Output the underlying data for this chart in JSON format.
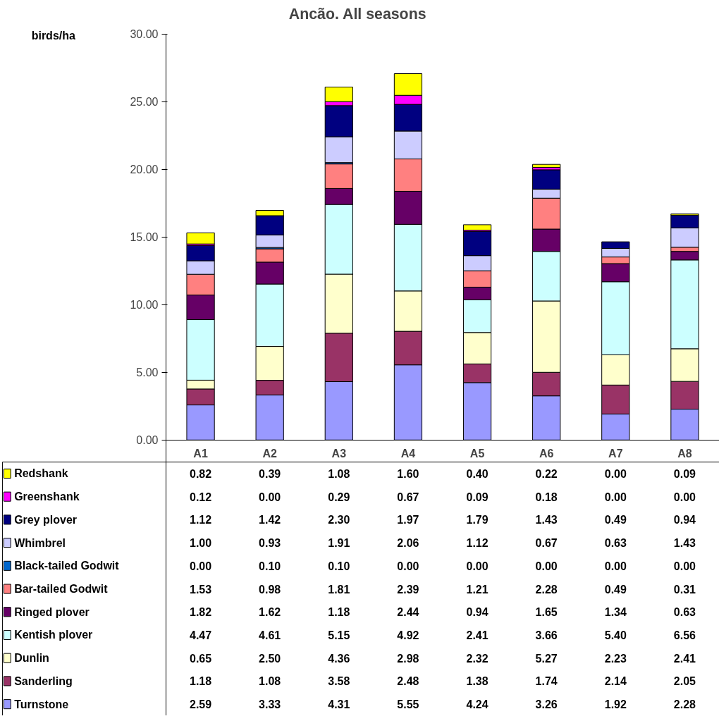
{
  "chart_data": {
    "type": "bar",
    "title": "Ancão.  All seasons",
    "ylabel": "birds/ha",
    "stacked": true,
    "legend": "bottom",
    "grid": false,
    "categories": [
      "A1",
      "A2",
      "A3",
      "A4",
      "A5",
      "A6",
      "A7",
      "A8"
    ],
    "ylim": [
      0,
      30
    ],
    "yticks": [
      {
        "value": 0,
        "label": "0.00"
      },
      {
        "value": 5,
        "label": "5.00"
      },
      {
        "value": 10,
        "label": "10.00"
      },
      {
        "value": 15,
        "label": "15.00"
      },
      {
        "value": 20,
        "label": "20.00"
      },
      {
        "value": 25,
        "label": "25.00"
      },
      {
        "value": 30,
        "label": "30.00"
      }
    ],
    "series": [
      {
        "name": "Turnstone",
        "color": "#9999ff",
        "values": [
          2.59,
          3.33,
          4.31,
          5.55,
          4.24,
          3.26,
          1.92,
          2.28
        ],
        "value_labels": [
          "2.59",
          "3.33",
          "4.31",
          "5.55",
          "4.24",
          "3.26",
          "1.92",
          "2.28"
        ]
      },
      {
        "name": "Sanderling",
        "color": "#993366",
        "values": [
          1.18,
          1.08,
          3.58,
          2.48,
          1.38,
          1.74,
          2.14,
          2.05
        ],
        "value_labels": [
          "1.18",
          "1.08",
          "3.58",
          "2.48",
          "1.38",
          "1.74",
          "2.14",
          "2.05"
        ]
      },
      {
        "name": "Dunlin",
        "color": "#ffffcc",
        "values": [
          0.65,
          2.5,
          4.36,
          2.98,
          2.32,
          5.27,
          2.23,
          2.41
        ],
        "value_labels": [
          "0.65",
          "2.50",
          "4.36",
          "2.98",
          "2.32",
          "5.27",
          "2.23",
          "2.41"
        ]
      },
      {
        "name": "Kentish plover",
        "color": "#ccffff",
        "values": [
          4.47,
          4.61,
          5.15,
          4.92,
          2.41,
          3.66,
          5.4,
          6.56
        ],
        "value_labels": [
          "4.47",
          "4.61",
          "5.15",
          "4.92",
          "2.41",
          "3.66",
          "5.40",
          "6.56"
        ]
      },
      {
        "name": "Ringed plover",
        "color": "#660066",
        "values": [
          1.82,
          1.62,
          1.18,
          2.44,
          0.94,
          1.65,
          1.34,
          0.63
        ],
        "value_labels": [
          "1.82",
          "1.62",
          "1.18",
          "2.44",
          "0.94",
          "1.65",
          "1.34",
          "0.63"
        ]
      },
      {
        "name": "Bar-tailed Godwit",
        "color": "#ff8080",
        "values": [
          1.53,
          0.98,
          1.81,
          2.39,
          1.21,
          2.28,
          0.49,
          0.31
        ],
        "value_labels": [
          "1.53",
          "0.98",
          "1.81",
          "2.39",
          "1.21",
          "2.28",
          "0.49",
          "0.31"
        ]
      },
      {
        "name": "Black-tailed Godwit",
        "color": "#0066cc",
        "values": [
          0,
          0.1,
          0.1,
          0,
          0,
          0,
          0,
          0
        ],
        "value_labels": [
          "0.00",
          "0.10",
          "0.10",
          "0.00",
          "0.00",
          "0.00",
          "0.00",
          "0.00"
        ]
      },
      {
        "name": "Whimbrel",
        "color": "#ccccff",
        "values": [
          1.0,
          0.93,
          1.91,
          2.06,
          1.12,
          0.67,
          0.63,
          1.43
        ],
        "value_labels": [
          "1.00",
          "0.93",
          "1.91",
          "2.06",
          "1.12",
          "0.67",
          "0.63",
          "1.43"
        ]
      },
      {
        "name": "Grey plover",
        "color": "#000080",
        "values": [
          1.12,
          1.42,
          2.3,
          1.97,
          1.79,
          1.43,
          0.49,
          0.94
        ],
        "value_labels": [
          "1.12",
          "1.42",
          "2.30",
          "1.97",
          "1.79",
          "1.43",
          "0.49",
          "0.94"
        ]
      },
      {
        "name": "Greenshank",
        "color": "#ff00ff",
        "values": [
          0.12,
          0,
          0.29,
          0.67,
          0.09,
          0.18,
          0,
          0
        ],
        "value_labels": [
          "0.12",
          "0.00",
          "0.29",
          "0.67",
          "0.09",
          "0.18",
          "0.00",
          "0.00"
        ]
      },
      {
        "name": "Redshank",
        "color": "#ffff00",
        "values": [
          0.82,
          0.39,
          1.08,
          1.6,
          0.4,
          0.22,
          0,
          0.09
        ],
        "value_labels": [
          "0.82",
          "0.39",
          "1.08",
          "1.60",
          "0.40",
          "0.22",
          "0.00",
          "0.09"
        ]
      }
    ]
  }
}
